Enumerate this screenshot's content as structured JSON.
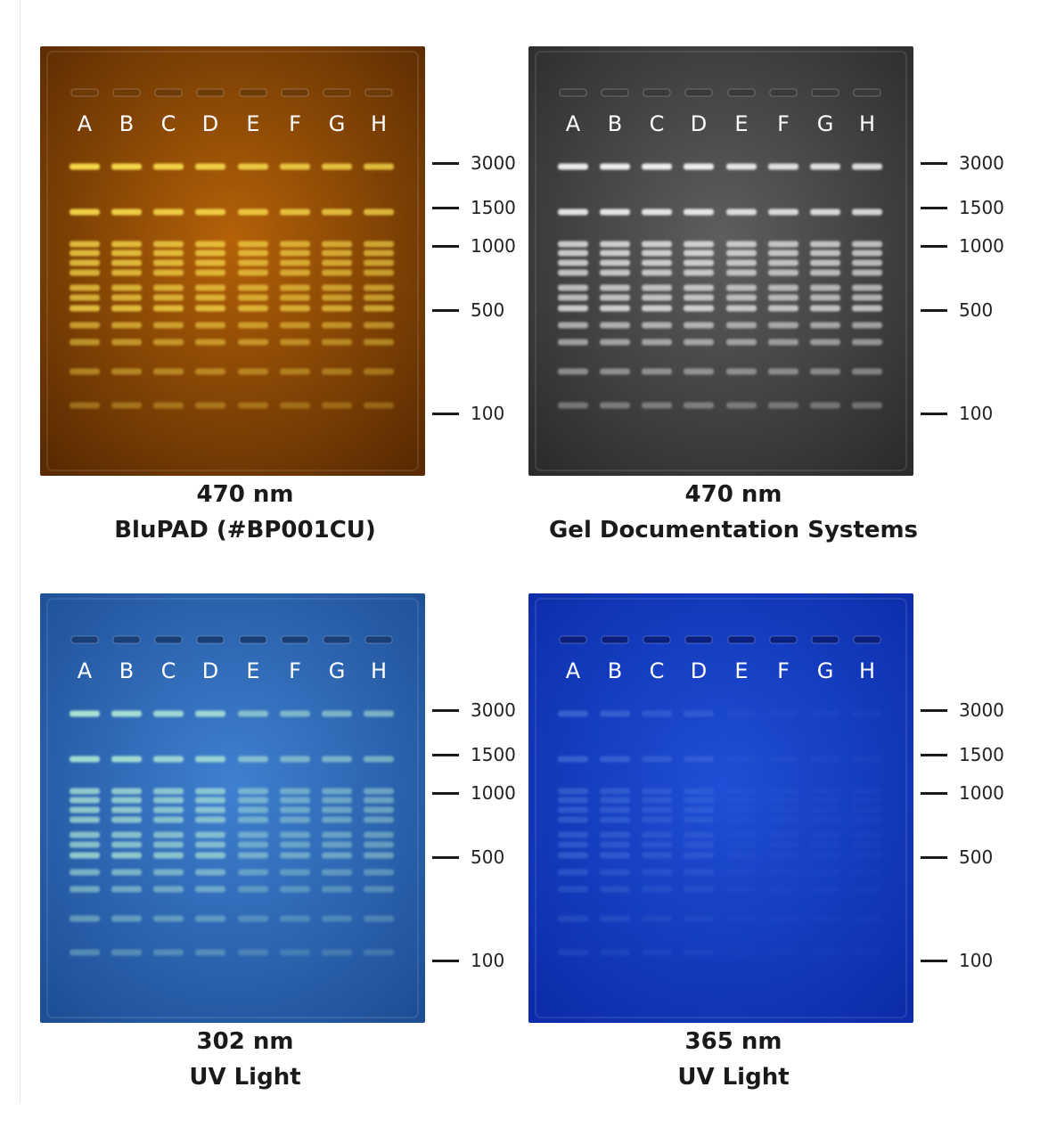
{
  "panels": [
    {
      "id": "blupad",
      "wavelength": "470 nm",
      "system": "BluPAD (#BP001CU)",
      "colors": {
        "bg_edge": "#5a2b02",
        "bg_center": "#b46208",
        "band": "#f6d64a",
        "well": "#6e3a08"
      },
      "intensity": [
        1.0,
        1.0,
        0.97,
        0.97,
        0.9,
        0.86,
        0.84,
        0.82
      ]
    },
    {
      "id": "geldoc",
      "wavelength": "470 nm",
      "system": "Gel Documentation Systems",
      "colors": {
        "bg_edge": "#2c2c2c",
        "bg_center": "#5e5e5e",
        "band": "#f4f4f4",
        "well": "#3a3a3a"
      },
      "intensity": [
        0.95,
        0.96,
        0.96,
        0.96,
        0.9,
        0.88,
        0.88,
        0.86
      ]
    },
    {
      "id": "uv302",
      "wavelength": "302 nm",
      "system": "UV Light",
      "colors": {
        "bg_edge": "#1d4f96",
        "bg_center": "#3f80cf",
        "band": "#b8f0d8",
        "well": "#1a3e76"
      },
      "intensity": [
        0.9,
        0.88,
        0.82,
        0.8,
        0.6,
        0.55,
        0.55,
        0.55
      ]
    },
    {
      "id": "uv365",
      "wavelength": "365 nm",
      "system": "UV Light",
      "colors": {
        "bg_edge": "#0c2caa",
        "bg_center": "#1f4fd6",
        "band": "#7fa6ee",
        "well": "#0a1f7e"
      },
      "intensity": [
        0.35,
        0.3,
        0.22,
        0.2,
        0.06,
        0.05,
        0.05,
        0.05
      ]
    }
  ],
  "lanes": [
    "A",
    "B",
    "C",
    "D",
    "E",
    "F",
    "G",
    "H"
  ],
  "markers": [
    "3000",
    "1500",
    "1000",
    "500",
    "100"
  ]
}
